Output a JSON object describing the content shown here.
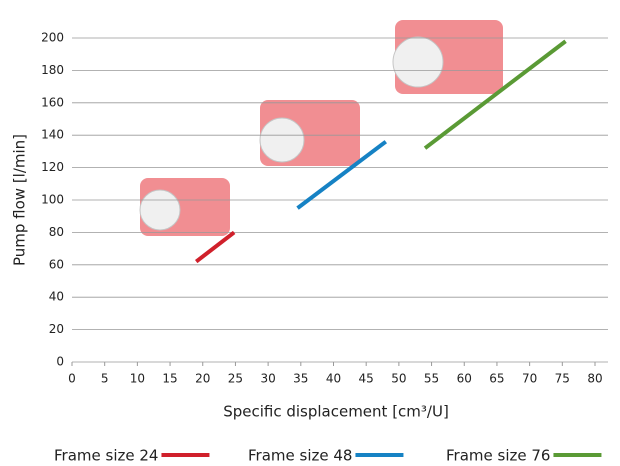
{
  "chart_data": {
    "type": "line",
    "x_label": "Specific displacement [cm³/U]",
    "y_label": "Pump flow [l/min]",
    "xlim": [
      0,
      80
    ],
    "xticks": [
      0,
      5,
      10,
      15,
      20,
      25,
      30,
      35,
      40,
      45,
      50,
      55,
      60,
      65,
      70,
      75,
      80
    ],
    "ylim": [
      0,
      200
    ],
    "yticks": [
      0,
      20,
      40,
      60,
      80,
      100,
      120,
      140,
      160,
      180,
      200
    ],
    "grid": true,
    "legend": "bottom",
    "series": [
      {
        "name": "Frame size 24",
        "color": "#d0202b",
        "x": [
          19,
          24.8
        ],
        "values": [
          62,
          80
        ]
      },
      {
        "name": "Frame size 48",
        "color": "#1682c4",
        "x": [
          34.5,
          48
        ],
        "values": [
          95,
          136
        ]
      },
      {
        "name": "Frame size 76",
        "color": "#5a9a35",
        "x": [
          54,
          75.5
        ],
        "values": [
          132,
          198
        ]
      }
    ]
  }
}
